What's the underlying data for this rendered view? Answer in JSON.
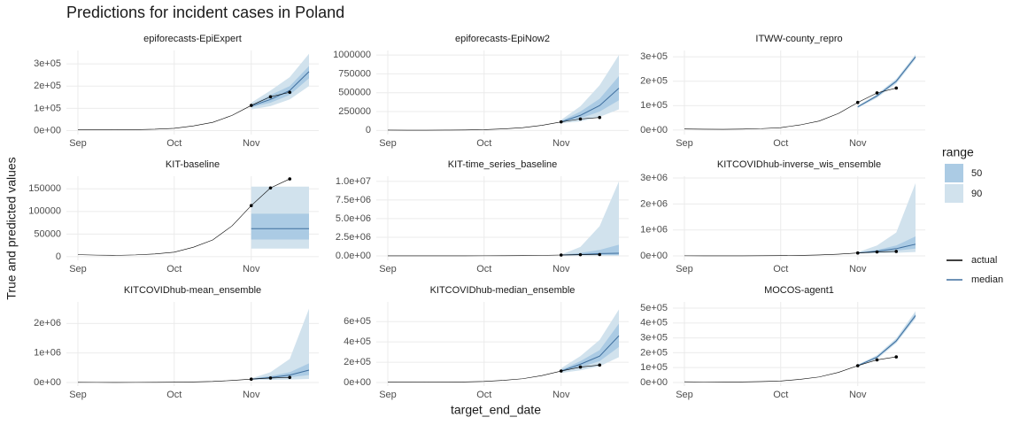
{
  "chart_data": {
    "type": "line",
    "title": "Predictions for incident cases in Poland",
    "x_label": "target_end_date",
    "y_label": "True and predicted values",
    "categories": [
      "Sep",
      null,
      null,
      null,
      null,
      "Oct",
      null,
      null,
      null,
      "Nov",
      null,
      null,
      null
    ],
    "grid": true,
    "actual": {
      "name": "actual",
      "color": "#000000",
      "values": [
        4500,
        3500,
        3000,
        4000,
        6000,
        10000,
        21000,
        37000,
        68000,
        113000,
        152000,
        172000,
        null
      ]
    },
    "actual_markers": [
      null,
      null,
      null,
      null,
      null,
      null,
      null,
      null,
      null,
      113000,
      152000,
      172000,
      null
    ],
    "median_style": {
      "name": "median",
      "color": "#3f6f9e"
    },
    "range_legend": {
      "title": "range",
      "items": [
        {
          "label": "50",
          "color": "#abcbe4"
        },
        {
          "label": "90",
          "color": "#d1e2ed"
        }
      ]
    },
    "panels": [
      {
        "title": "epiforecasts-EpiExpert",
        "ylim": [
          -18000,
          360000
        ],
        "yticks": [
          {
            "value": 0,
            "label": "0e+00"
          },
          {
            "value": 100000,
            "label": "1e+05"
          },
          {
            "value": 200000,
            "label": "2e+05"
          },
          {
            "value": 300000,
            "label": "3e+05"
          }
        ],
        "median": [
          null,
          null,
          null,
          null,
          null,
          null,
          null,
          null,
          null,
          110000,
          140000,
          180000,
          265000
        ],
        "ranges": [
          {
            "lower": [
              null,
              null,
              null,
              null,
              null,
              null,
              null,
              null,
              null,
              95000,
              110000,
              140000,
              200000
            ],
            "upper": [
              null,
              null,
              null,
              null,
              null,
              null,
              null,
              null,
              null,
              125000,
              180000,
              240000,
              345000
            ]
          },
          {
            "lower": [
              null,
              null,
              null,
              null,
              null,
              null,
              null,
              null,
              null,
              105000,
              125000,
              160000,
              235000
            ],
            "upper": [
              null,
              null,
              null,
              null,
              null,
              null,
              null,
              null,
              null,
              115000,
              160000,
              200000,
              290000
            ]
          }
        ]
      },
      {
        "title": "epiforecasts-EpiNow2",
        "ylim": [
          -55000,
          1060000
        ],
        "yticks": [
          0,
          250000,
          500000,
          750000,
          1000000
        ],
        "median": [
          null,
          null,
          null,
          null,
          null,
          null,
          null,
          null,
          null,
          113000,
          200000,
          330000,
          560000
        ],
        "ranges": [
          {
            "lower": [
              null,
              null,
              null,
              null,
              null,
              null,
              null,
              null,
              null,
              95000,
              120000,
              180000,
              280000
            ],
            "upper": [
              null,
              null,
              null,
              null,
              null,
              null,
              null,
              null,
              null,
              140000,
              320000,
              600000,
              1000000
            ]
          },
          {
            "lower": [
              null,
              null,
              null,
              null,
              null,
              null,
              null,
              null,
              null,
              105000,
              160000,
              250000,
              400000
            ],
            "upper": [
              null,
              null,
              null,
              null,
              null,
              null,
              null,
              null,
              null,
              125000,
              250000,
              420000,
              720000
            ]
          }
        ]
      },
      {
        "title": "ITWW-county_repro",
        "ylim": [
          -18500,
          326000
        ],
        "yticks": [
          {
            "value": 0,
            "label": "0e+00"
          },
          {
            "value": 100000,
            "label": "1e+05"
          },
          {
            "value": 200000,
            "label": "2e+05"
          },
          {
            "value": 300000,
            "label": "3e+05"
          }
        ],
        "median": [
          null,
          null,
          null,
          null,
          null,
          null,
          null,
          null,
          null,
          95000,
          140000,
          200000,
          300000
        ],
        "ranges": [
          {
            "lower": [
              null,
              null,
              null,
              null,
              null,
              null,
              null,
              null,
              null,
              90000,
              132000,
              190000,
              290000
            ],
            "upper": [
              null,
              null,
              null,
              null,
              null,
              null,
              null,
              null,
              null,
              100000,
              148000,
              210000,
              310000
            ]
          },
          {
            "lower": [
              null,
              null,
              null,
              null,
              null,
              null,
              null,
              null,
              null,
              93000,
              136000,
              195000,
              295000
            ],
            "upper": [
              null,
              null,
              null,
              null,
              null,
              null,
              null,
              null,
              null,
              97000,
              144000,
              205000,
              305000
            ]
          }
        ]
      },
      {
        "title": "KIT-baseline",
        "ylim": [
          -8000,
          178000
        ],
        "yticks": [
          0,
          50000,
          100000,
          150000
        ],
        "median": [
          null,
          null,
          null,
          null,
          null,
          null,
          null,
          null,
          null,
          62000,
          62000,
          62000,
          62000
        ],
        "ranges": [
          {
            "lower": [
              null,
              null,
              null,
              null,
              null,
              null,
              null,
              null,
              null,
              18000,
              18000,
              18000,
              18000
            ],
            "upper": [
              null,
              null,
              null,
              null,
              null,
              null,
              null,
              null,
              null,
              155000,
              155000,
              155000,
              155000
            ]
          },
          {
            "lower": [
              null,
              null,
              null,
              null,
              null,
              null,
              null,
              null,
              null,
              38000,
              38000,
              38000,
              38000
            ],
            "upper": [
              null,
              null,
              null,
              null,
              null,
              null,
              null,
              null,
              null,
              95000,
              95000,
              95000,
              95000
            ]
          }
        ]
      },
      {
        "title": "KIT-time_series_baseline",
        "ylim": [
          -600000,
          10700000
        ],
        "yticks": [
          {
            "value": 0,
            "label": "0.0e+00"
          },
          {
            "value": 2500000,
            "label": "2.5e+06"
          },
          {
            "value": 5000000,
            "label": "5.0e+06"
          },
          {
            "value": 7500000,
            "label": "7.5e+06"
          },
          {
            "value": 10000000,
            "label": "1.0e+07"
          }
        ],
        "median": [
          null,
          null,
          null,
          null,
          null,
          null,
          null,
          null,
          null,
          113000,
          180000,
          300000,
          350000
        ],
        "ranges": [
          {
            "lower": [
              null,
              null,
              null,
              null,
              null,
              null,
              null,
              null,
              null,
              80000,
              60000,
              40000,
              30000
            ],
            "upper": [
              null,
              null,
              null,
              null,
              null,
              null,
              null,
              null,
              null,
              160000,
              1200000,
              4000000,
              10000000
            ]
          },
          {
            "lower": [
              null,
              null,
              null,
              null,
              null,
              null,
              null,
              null,
              null,
              100000,
              110000,
              100000,
              100000
            ],
            "upper": [
              null,
              null,
              null,
              null,
              null,
              null,
              null,
              null,
              null,
              130000,
              400000,
              800000,
              1500000
            ]
          }
        ]
      },
      {
        "title": "KITCOVIDhub-inverse_wis_ensemble",
        "ylim": [
          -170000,
          3070000
        ],
        "yticks": [
          {
            "value": 0,
            "label": "0e+00"
          },
          {
            "value": 1000000,
            "label": "1e+06"
          },
          {
            "value": 2000000,
            "label": "2e+06"
          },
          {
            "value": 3000000,
            "label": "3e+06"
          }
        ],
        "median": [
          null,
          null,
          null,
          null,
          null,
          null,
          null,
          null,
          null,
          113000,
          180000,
          280000,
          450000
        ],
        "ranges": [
          {
            "lower": [
              null,
              null,
              null,
              null,
              null,
              null,
              null,
              null,
              null,
              95000,
              100000,
              120000,
              150000
            ],
            "upper": [
              null,
              null,
              null,
              null,
              null,
              null,
              null,
              null,
              null,
              140000,
              400000,
              900000,
              2800000
            ]
          },
          {
            "lower": [
              null,
              null,
              null,
              null,
              null,
              null,
              null,
              null,
              null,
              105000,
              140000,
              200000,
              280000
            ],
            "upper": [
              null,
              null,
              null,
              null,
              null,
              null,
              null,
              null,
              null,
              125000,
              230000,
              400000,
              750000
            ]
          }
        ]
      },
      {
        "title": "KITCOVIDhub-mean_ensemble",
        "ylim": [
          -120000,
          2730000
        ],
        "yticks": [
          {
            "value": 0,
            "label": "0e+00"
          },
          {
            "value": 1000000,
            "label": "1e+06"
          },
          {
            "value": 2000000,
            "label": "2e+06"
          }
        ],
        "median": [
          null,
          null,
          null,
          null,
          null,
          null,
          null,
          null,
          null,
          113000,
          170000,
          250000,
          420000
        ],
        "ranges": [
          {
            "lower": [
              null,
              null,
              null,
              null,
              null,
              null,
              null,
              null,
              null,
              95000,
              90000,
              100000,
              120000
            ],
            "upper": [
              null,
              null,
              null,
              null,
              null,
              null,
              null,
              null,
              null,
              140000,
              350000,
              800000,
              2500000
            ]
          },
          {
            "lower": [
              null,
              null,
              null,
              null,
              null,
              null,
              null,
              null,
              null,
              105000,
              130000,
              180000,
              250000
            ],
            "upper": [
              null,
              null,
              null,
              null,
              null,
              null,
              null,
              null,
              null,
              125000,
              220000,
              350000,
              650000
            ]
          }
        ]
      },
      {
        "title": "KITCOVIDhub-median_ensemble",
        "ylim": [
          -35000,
          794000
        ],
        "yticks": [
          {
            "value": 0,
            "label": "0e+00"
          },
          {
            "value": 200000,
            "label": "2e+05"
          },
          {
            "value": 400000,
            "label": "4e+05"
          },
          {
            "value": 600000,
            "label": "6e+05"
          }
        ],
        "median": [
          null,
          null,
          null,
          null,
          null,
          null,
          null,
          null,
          null,
          113000,
          180000,
          260000,
          460000
        ],
        "ranges": [
          {
            "lower": [
              null,
              null,
              null,
              null,
              null,
              null,
              null,
              null,
              null,
              95000,
              120000,
              160000,
              250000
            ],
            "upper": [
              null,
              null,
              null,
              null,
              null,
              null,
              null,
              null,
              null,
              140000,
              260000,
              420000,
              720000
            ]
          },
          {
            "lower": [
              null,
              null,
              null,
              null,
              null,
              null,
              null,
              null,
              null,
              105000,
              150000,
              210000,
              350000
            ],
            "upper": [
              null,
              null,
              null,
              null,
              null,
              null,
              null,
              null,
              null,
              125000,
              210000,
              320000,
              580000
            ]
          }
        ]
      },
      {
        "title": "MOCOS-agent1",
        "ylim": [
          -24000,
          542000
        ],
        "yticks": [
          {
            "value": 0,
            "label": "0e+00"
          },
          {
            "value": 100000,
            "label": "1e+05"
          },
          {
            "value": 200000,
            "label": "2e+05"
          },
          {
            "value": 300000,
            "label": "3e+05"
          },
          {
            "value": 400000,
            "label": "4e+05"
          },
          {
            "value": 500000,
            "label": "5e+05"
          }
        ],
        "median": [
          null,
          null,
          null,
          null,
          null,
          null,
          null,
          null,
          null,
          113000,
          170000,
          280000,
          450000
        ],
        "ranges": [
          {
            "lower": [
              null,
              null,
              null,
              null,
              null,
              null,
              null,
              null,
              null,
              106000,
              158000,
              265000,
              430000
            ],
            "upper": [
              null,
              null,
              null,
              null,
              null,
              null,
              null,
              null,
              null,
              120000,
              184000,
              298000,
              480000
            ]
          },
          {
            "lower": [
              null,
              null,
              null,
              null,
              null,
              null,
              null,
              null,
              null,
              110000,
              165000,
              272000,
              440000
            ],
            "upper": [
              null,
              null,
              null,
              null,
              null,
              null,
              null,
              null,
              null,
              116000,
              176000,
              288000,
              465000
            ]
          }
        ]
      }
    ]
  }
}
